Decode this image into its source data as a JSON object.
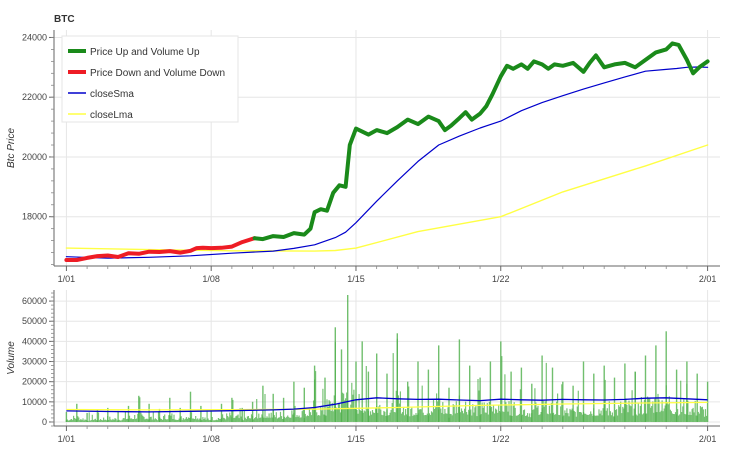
{
  "chart_data": [
    {
      "type": "line",
      "title": "BTC",
      "ylabel": "Btc Price",
      "xlabel": "",
      "x_tick_labels": [
        "1/01",
        "1/08",
        "1/15",
        "1/22",
        "2/01"
      ],
      "x_tick_values": [
        0,
        7,
        14,
        21,
        31
      ],
      "xlim": [
        -0.6,
        31.6
      ],
      "y_ticks": [
        18000,
        20000,
        22000,
        24000
      ],
      "y_tick_labels": [
        "18000",
        "20000",
        "22000",
        "24000"
      ],
      "ylim": [
        16350,
        24250
      ],
      "grid": true,
      "legend_position": "top-left",
      "legend": [
        {
          "label": "Price Up and Volume Up",
          "color": "#1a8a1a"
        },
        {
          "label": "Price Down and Volume Down",
          "color": "#ee1c25"
        },
        {
          "label": "closeSma",
          "color": "#0000cc"
        },
        {
          "label": "closeLma",
          "color": "#ffff44"
        }
      ],
      "series": [
        {
          "name": "Price Up and Volume Up",
          "color": "#1a8a1a",
          "x": [
            9.1,
            9.5,
            10,
            10.5,
            11,
            11.5,
            11.8,
            12,
            12.3,
            12.6,
            12.9,
            13.2,
            13.5,
            13.7,
            14,
            14.3,
            14.6,
            15,
            15.5,
            16,
            16.5,
            17,
            17.5,
            18,
            18.3,
            18.6,
            19,
            19.3,
            19.6,
            20,
            20.3,
            20.6,
            21,
            21.3,
            21.6,
            22,
            22.3,
            22.6,
            23,
            23.3,
            23.6,
            24,
            24.5,
            25,
            25.3,
            25.6,
            26,
            26.5,
            27,
            27.5,
            28,
            28.5,
            29,
            29.3,
            29.6,
            30,
            30.3,
            30.6,
            31
          ],
          "y": [
            17280,
            17250,
            17350,
            17320,
            17450,
            17400,
            17600,
            18150,
            18250,
            18200,
            18800,
            19050,
            19000,
            20400,
            20950,
            20850,
            20750,
            20900,
            20800,
            21000,
            21250,
            21100,
            21350,
            21200,
            20900,
            21050,
            21300,
            21500,
            21250,
            21450,
            21700,
            22100,
            22700,
            23050,
            22950,
            23100,
            22950,
            23200,
            23100,
            22950,
            23100,
            23050,
            23150,
            22850,
            23150,
            23400,
            23000,
            23100,
            23150,
            23000,
            23250,
            23500,
            23600,
            23800,
            23750,
            23250,
            22800,
            23000,
            23200
          ]
        },
        {
          "name": "Price Down and Volume Down",
          "color": "#ee1c25",
          "x": [
            0,
            0.5,
            1,
            1.5,
            2,
            2.5,
            3,
            3.5,
            4,
            4.5,
            5,
            5.5,
            6,
            6.3,
            6.6,
            7,
            7.5,
            8,
            8.5,
            9.1
          ],
          "y": [
            16550,
            16550,
            16620,
            16680,
            16700,
            16650,
            16780,
            16760,
            16830,
            16820,
            16850,
            16800,
            16860,
            16950,
            16960,
            16950,
            16960,
            17000,
            17150,
            17280
          ]
        },
        {
          "name": "closeSma",
          "color": "#0000cc",
          "x": [
            0,
            2,
            4,
            6,
            8,
            10,
            11,
            12,
            13,
            13.5,
            14,
            15,
            16,
            17,
            18,
            19,
            20,
            21,
            22,
            23,
            24,
            25,
            26,
            27,
            28,
            29,
            29.5,
            30,
            30.5,
            31
          ],
          "y": [
            16660,
            16610,
            16640,
            16690,
            16780,
            16850,
            16940,
            17060,
            17300,
            17480,
            17800,
            18520,
            19200,
            19850,
            20400,
            20700,
            20970,
            21200,
            21550,
            21820,
            22050,
            22270,
            22480,
            22680,
            22870,
            22930,
            22960,
            23000,
            23010,
            23000
          ]
        },
        {
          "name": "closeLma",
          "color": "#ffff44",
          "x": [
            0,
            4,
            8,
            12,
            13,
            14,
            17,
            21,
            24,
            28,
            31
          ],
          "y": [
            16950,
            16900,
            16860,
            16850,
            16870,
            16950,
            17500,
            18000,
            18830,
            19700,
            20400
          ]
        }
      ]
    },
    {
      "type": "bar",
      "title": "",
      "ylabel": "Volume",
      "xlabel": "",
      "x_tick_labels": [
        "1/01",
        "1/08",
        "1/15",
        "1/22",
        "2/01"
      ],
      "x_tick_values": [
        0,
        7,
        14,
        21,
        31
      ],
      "xlim": [
        -0.6,
        31.6
      ],
      "y_ticks": [
        0,
        10000,
        20000,
        30000,
        40000,
        50000,
        60000
      ],
      "y_tick_labels": [
        "0",
        "10000",
        "20000",
        "30000",
        "40000",
        "50000",
        "60000"
      ],
      "ylim": [
        -2000,
        65500
      ],
      "grid": true,
      "series": [
        {
          "name": "Volume",
          "color": "#4daf4a",
          "x": [
            0,
            0.5,
            1,
            1.5,
            2,
            2.5,
            3,
            3.5,
            4,
            4.5,
            5,
            5.5,
            6,
            6.5,
            7,
            7.5,
            8,
            8.5,
            9,
            9.5,
            10,
            10.5,
            11,
            11.5,
            12,
            12.5,
            13,
            13.3,
            13.6,
            14,
            14.3,
            14.6,
            15,
            15.5,
            16,
            16.5,
            17,
            17.5,
            18,
            18.5,
            19,
            19.5,
            20,
            20.5,
            21,
            21.5,
            22,
            22.5,
            23,
            23.5,
            24,
            24.5,
            25,
            25.5,
            26,
            26.5,
            27,
            27.5,
            28,
            28.5,
            29,
            29.5,
            30,
            30.5,
            31
          ],
          "values": [
            5000,
            9000,
            4500,
            6000,
            7000,
            5500,
            8000,
            13000,
            9000,
            6500,
            12000,
            7000,
            15000,
            8000,
            6000,
            9000,
            12000,
            7000,
            10000,
            18000,
            14000,
            12000,
            20000,
            17000,
            28000,
            22000,
            47000,
            36000,
            63000,
            30000,
            40000,
            25000,
            34000,
            24000,
            44000,
            20000,
            30000,
            26000,
            38000,
            17000,
            41000,
            28000,
            22000,
            30000,
            40000,
            25000,
            27000,
            19000,
            33000,
            27000,
            20000,
            18000,
            30000,
            24000,
            28000,
            22000,
            29000,
            25000,
            33000,
            38000,
            45000,
            26000,
            30000,
            24000,
            20000
          ]
        },
        {
          "name": "closeSma",
          "color": "#0000cc",
          "x": [
            0,
            2,
            4,
            6,
            8,
            10,
            11,
            12,
            13,
            14,
            15,
            16,
            17,
            18,
            19,
            20,
            21,
            22,
            23,
            24,
            25,
            26,
            27,
            28,
            29,
            30,
            31
          ],
          "values": [
            5500,
            5200,
            5000,
            5300,
            5600,
            6000,
            6400,
            7200,
            8800,
            11000,
            12000,
            11500,
            11200,
            11300,
            10900,
            10600,
            11300,
            11000,
            10800,
            11200,
            11000,
            10900,
            11200,
            11800,
            12000,
            11500,
            11000
          ]
        },
        {
          "name": "closeLma",
          "color": "#ffff44",
          "x": [
            0,
            4,
            8,
            12,
            16,
            20,
            24,
            28,
            31
          ],
          "values": [
            6200,
            6000,
            6100,
            6400,
            7200,
            8200,
            8900,
            9400,
            9700
          ]
        }
      ]
    }
  ]
}
